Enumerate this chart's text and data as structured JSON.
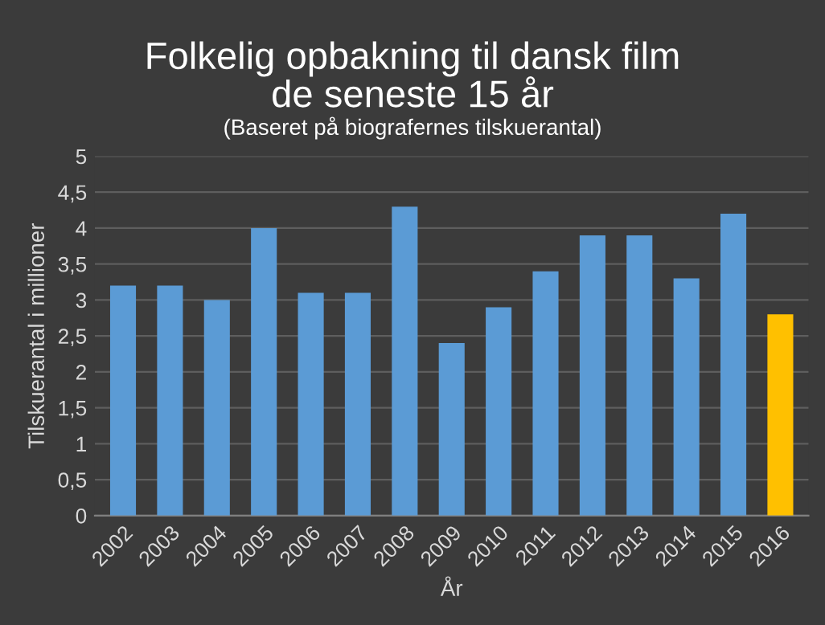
{
  "chart_data": {
    "type": "bar",
    "title": "Folkelig opbakning til dansk film\nde seneste 15 år",
    "subtitle": "(Baseret på biografernes tilskuerantal)",
    "xlabel": "År",
    "ylabel": "Tilskuerantal i millioner",
    "categories": [
      "2002",
      "2003",
      "2004",
      "2005",
      "2006",
      "2007",
      "2008",
      "2009",
      "2010",
      "2011",
      "2012",
      "2013",
      "2014",
      "2015",
      "2016"
    ],
    "values": [
      3.2,
      3.2,
      3.0,
      4.0,
      3.1,
      3.1,
      4.3,
      2.4,
      2.9,
      3.4,
      3.9,
      3.9,
      3.3,
      4.2,
      2.8
    ],
    "colors": [
      "#5b9bd5",
      "#5b9bd5",
      "#5b9bd5",
      "#5b9bd5",
      "#5b9bd5",
      "#5b9bd5",
      "#5b9bd5",
      "#5b9bd5",
      "#5b9bd5",
      "#5b9bd5",
      "#5b9bd5",
      "#5b9bd5",
      "#5b9bd5",
      "#5b9bd5",
      "#ffc000"
    ],
    "ylim": [
      0,
      5
    ],
    "yticks": [
      0,
      {
        "value": 0.5,
        "label": "0,5"
      },
      1,
      {
        "value": 1.5,
        "label": "1,5"
      },
      2,
      {
        "value": 2.5,
        "label": "2,5"
      },
      3,
      {
        "value": 3.5,
        "label": "3,5"
      },
      4,
      {
        "value": 4.5,
        "label": "4,5"
      },
      5
    ],
    "grid": "y",
    "legend": false
  }
}
